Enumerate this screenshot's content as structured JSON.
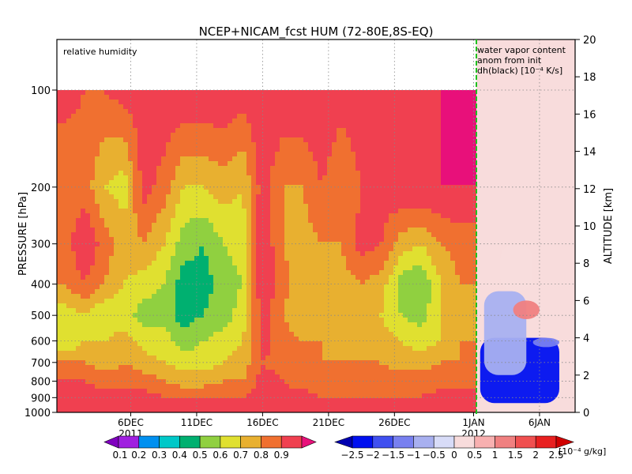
{
  "chart_data": {
    "type": "heatmap",
    "title": "NCEP+NICAM_fcst HUM (72-80E,8S-EQ)",
    "left_panel": {
      "annotation": "relative humidity",
      "series": "relative humidity",
      "ylabel": "PRESSURE [hPa]",
      "pressure_ticks": [
        "100",
        "200",
        "300",
        "400",
        "500",
        "600",
        "700",
        "800",
        "900",
        "1000"
      ],
      "pressure_values": [
        100,
        200,
        300,
        400,
        500,
        600,
        700,
        800,
        900,
        1000
      ],
      "x_ticks": [
        {
          "label": "6DEC",
          "day": 6
        },
        {
          "label": "11DEC",
          "day": 11
        },
        {
          "label": "16DEC",
          "day": 16
        },
        {
          "label": "21DEC",
          "day": 21
        },
        {
          "label": "26DEC",
          "day": 26
        },
        {
          "label": "1JAN",
          "day": 32
        }
      ],
      "year_start": "2011",
      "profiles": [
        {
          "day": 1.0,
          "v": [
            0.85,
            0.7,
            0.75,
            0.7,
            0.55,
            0.5,
            0.7,
            0.8,
            0.9,
            0.85
          ]
        },
        {
          "day": 2.5,
          "v": [
            0.8,
            0.75,
            0.9,
            0.8,
            0.6,
            0.6,
            0.7,
            0.8,
            0.9,
            0.85
          ]
        },
        {
          "day": 4.0,
          "v": [
            0.8,
            0.6,
            0.75,
            0.7,
            0.5,
            0.6,
            0.65,
            0.75,
            0.85,
            0.85
          ]
        },
        {
          "day": 5.5,
          "v": [
            0.85,
            0.55,
            0.65,
            0.6,
            0.55,
            0.65,
            0.7,
            0.75,
            0.85,
            0.85
          ]
        },
        {
          "day": 7.0,
          "v": [
            0.85,
            0.85,
            0.7,
            0.55,
            0.45,
            0.55,
            0.65,
            0.75,
            0.85,
            0.85
          ]
        },
        {
          "day": 8.5,
          "v": [
            0.9,
            0.75,
            0.6,
            0.5,
            0.45,
            0.55,
            0.6,
            0.7,
            0.8,
            0.85
          ]
        },
        {
          "day": 10.0,
          "v": [
            0.9,
            0.6,
            0.45,
            0.35,
            0.35,
            0.45,
            0.55,
            0.65,
            0.8,
            0.85
          ]
        },
        {
          "day": 11.5,
          "v": [
            0.9,
            0.6,
            0.4,
            0.35,
            0.4,
            0.5,
            0.55,
            0.65,
            0.8,
            0.85
          ]
        },
        {
          "day": 13.0,
          "v": [
            0.9,
            0.65,
            0.5,
            0.45,
            0.45,
            0.55,
            0.6,
            0.7,
            0.8,
            0.85
          ]
        },
        {
          "day": 14.5,
          "v": [
            0.85,
            0.6,
            0.55,
            0.5,
            0.55,
            0.6,
            0.65,
            0.7,
            0.8,
            0.85
          ]
        },
        {
          "day": 16.0,
          "v": [
            0.9,
            0.85,
            0.9,
            0.9,
            0.85,
            0.85,
            0.8,
            0.85,
            0.85,
            0.85
          ]
        },
        {
          "day": 17.5,
          "v": [
            0.9,
            0.7,
            0.7,
            0.75,
            0.7,
            0.75,
            0.75,
            0.8,
            0.85,
            0.85
          ]
        },
        {
          "day": 19.0,
          "v": [
            0.9,
            0.7,
            0.65,
            0.6,
            0.6,
            0.7,
            0.7,
            0.75,
            0.85,
            0.85
          ]
        },
        {
          "day": 20.5,
          "v": [
            0.9,
            0.8,
            0.7,
            0.7,
            0.65,
            0.7,
            0.7,
            0.75,
            0.8,
            0.85
          ]
        },
        {
          "day": 22.0,
          "v": [
            0.85,
            0.7,
            0.7,
            0.65,
            0.6,
            0.65,
            0.7,
            0.75,
            0.8,
            0.85
          ]
        },
        {
          "day": 23.5,
          "v": [
            0.9,
            0.8,
            0.85,
            0.7,
            0.6,
            0.65,
            0.7,
            0.75,
            0.8,
            0.85
          ]
        },
        {
          "day": 25.0,
          "v": [
            0.9,
            0.85,
            0.8,
            0.65,
            0.6,
            0.65,
            0.7,
            0.75,
            0.8,
            0.85
          ]
        },
        {
          "day": 26.5,
          "v": [
            0.9,
            0.9,
            0.65,
            0.45,
            0.5,
            0.6,
            0.65,
            0.75,
            0.8,
            0.85
          ]
        },
        {
          "day": 28.0,
          "v": [
            0.85,
            0.9,
            0.6,
            0.4,
            0.45,
            0.55,
            0.65,
            0.75,
            0.8,
            0.85
          ]
        },
        {
          "day": 29.5,
          "v": [
            0.9,
            0.9,
            0.7,
            0.6,
            0.6,
            0.6,
            0.7,
            0.75,
            0.85,
            0.85
          ]
        },
        {
          "day": 31.0,
          "v": [
            0.9,
            0.9,
            0.75,
            0.7,
            0.65,
            0.7,
            0.7,
            0.75,
            0.85,
            0.85
          ]
        }
      ],
      "levels": [
        0.1,
        0.2,
        0.3,
        0.4,
        0.5,
        0.6,
        0.7,
        0.8,
        0.9
      ],
      "colors": [
        "#8000c0",
        "#a020e0",
        "#0090f0",
        "#00c8c8",
        "#00b070",
        "#90d040",
        "#e0e030",
        "#e8b030",
        "#f07030",
        "#f04050",
        "#e8107a"
      ]
    },
    "right_panel": {
      "annotation_lines": [
        "water vapor content",
        "anom from init",
        "dh(black) [10⁻⁴ K/s]"
      ],
      "ylabel": "ALTITUDE [km]",
      "altitude_ticks": [
        "0",
        "2",
        "4",
        "6",
        "8",
        "10",
        "12",
        "14",
        "16",
        "18",
        "20"
      ],
      "altitude_values": [
        0,
        2,
        4,
        6,
        8,
        10,
        12,
        14,
        16,
        18,
        20
      ],
      "x_ticks": [
        {
          "label": "1JAN",
          "day": 32
        },
        {
          "label": "6JAN",
          "day": 37
        }
      ],
      "year_start": "2012",
      "anomaly_regions": [
        {
          "day_from": 32.5,
          "day_to": 38.5,
          "alt_from": 0.5,
          "alt_to": 4.0,
          "value": -2.2
        },
        {
          "day_from": 32.8,
          "day_to": 36.0,
          "alt_from": 2.0,
          "alt_to": 6.5,
          "value": -1.0
        },
        {
          "day_from": 35.0,
          "day_to": 37.0,
          "alt_from": 5.0,
          "alt_to": 6.0,
          "value": 1.2
        },
        {
          "day_from": 34.0,
          "day_to": 36.5,
          "alt_from": 6.5,
          "alt_to": 9.0,
          "value": 0.4
        },
        {
          "day_from": 36.5,
          "day_to": 38.5,
          "alt_from": 3.5,
          "alt_to": 4.0,
          "value": -1.2
        }
      ],
      "levels": [
        -2.5,
        -2,
        -1.5,
        -1,
        -0.5,
        0,
        0.5,
        1,
        1.5,
        2,
        2.5
      ],
      "level_labels": [
        "−2.5",
        "−2",
        "−1.5",
        "−1",
        "−0.5",
        "0",
        "0.5",
        "1",
        "1.5",
        "2",
        "2.5"
      ],
      "colors": [
        "#0000b0",
        "#0010f0",
        "#4050f0",
        "#7880f0",
        "#a8b0f0",
        "#d8dcf8",
        "#f8dcdc",
        "#f8b0b0",
        "#f08080",
        "#f05050",
        "#e82020",
        "#d00000"
      ],
      "units": "[10⁻⁴ g/kg]"
    },
    "forecast_start_marker": {
      "day": 32,
      "style": "dashed green"
    }
  }
}
